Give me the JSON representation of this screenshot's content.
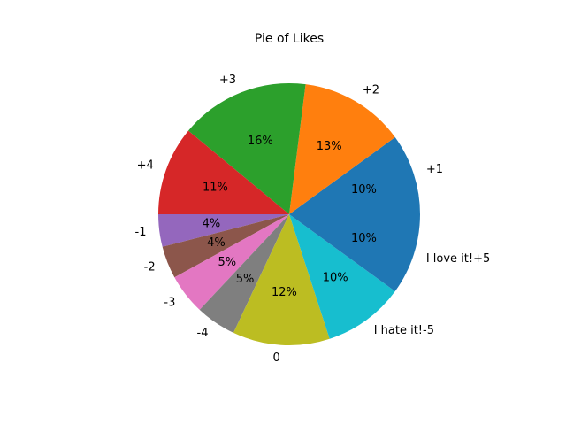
{
  "chart_data": {
    "type": "pie",
    "title": "Pie of Likes",
    "start_angle_deg": 0,
    "direction": "counterclockwise",
    "slices": [
      {
        "label": "+1",
        "value": 10,
        "pct_label": "10%",
        "color": "#1f77b4"
      },
      {
        "label": "+2",
        "value": 13,
        "pct_label": "13%",
        "color": "#ff7f0e"
      },
      {
        "label": "+3",
        "value": 16,
        "pct_label": "16%",
        "color": "#2ca02c"
      },
      {
        "label": "+4",
        "value": 11,
        "pct_label": "11%",
        "color": "#d62728"
      },
      {
        "label": "-1",
        "value": 4,
        "pct_label": "4%",
        "color": "#9467bd"
      },
      {
        "label": "-2",
        "value": 4,
        "pct_label": "4%",
        "color": "#8c564b"
      },
      {
        "label": "-3",
        "value": 5,
        "pct_label": "5%",
        "color": "#e377c2"
      },
      {
        "label": "-4",
        "value": 5,
        "pct_label": "5%",
        "color": "#7f7f7f"
      },
      {
        "label": "0",
        "value": 12,
        "pct_label": "12%",
        "color": "#bcbd22"
      },
      {
        "label": "I hate it!-5",
        "value": 10,
        "pct_label": "10%",
        "color": "#17becf"
      },
      {
        "label": "I love it!+5",
        "value": 10,
        "pct_label": "10%",
        "color": "#1f77b4"
      }
    ]
  }
}
